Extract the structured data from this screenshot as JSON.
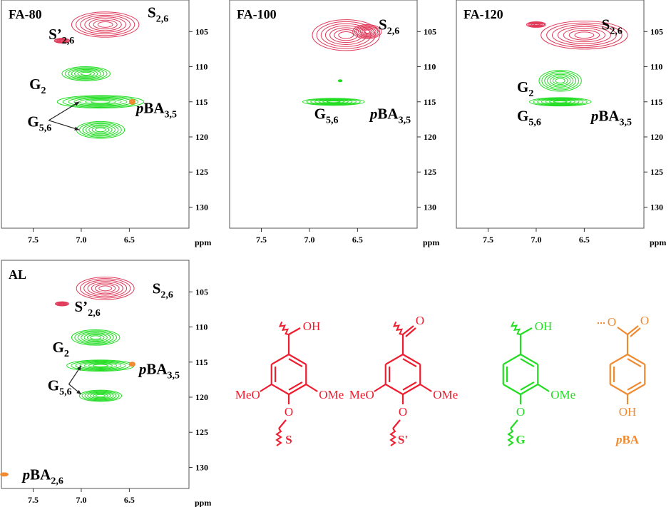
{
  "chart_data": [
    {
      "type": "contour",
      "title": "FA-80",
      "xlabel": "ppm",
      "xlim": [
        7.83,
        5.88
      ],
      "ylim": [
        100.5,
        133
      ],
      "xticks": [
        7.5,
        {
          "value": 7,
          "label": "7.0"
        },
        6.5
      ],
      "yticks": [
        105,
        110,
        115,
        120,
        125,
        130
      ],
      "series": [
        {
          "color": "#e03a5a",
          "x": [
            6.75,
            7.2
          ],
          "y": [
            104,
            106.3
          ],
          "xspread": [
            0.35,
            0.08
          ],
          "yspread": [
            1.8,
            0.35
          ]
        },
        {
          "color": "#22dd22",
          "x": [
            6.95,
            6.8,
            6.8
          ],
          "y": [
            111,
            115,
            119
          ],
          "xspread": [
            0.25,
            0.45,
            0.25
          ],
          "yspread": [
            1,
            0.9,
            1.2
          ]
        },
        {
          "color": "#f08a30",
          "x": [
            6.47
          ],
          "y": [
            115
          ],
          "xspread": [
            0.03
          ],
          "yspread": [
            0.35
          ]
        }
      ],
      "annotations": [
        {
          "text": "S",
          "sub": "2,6",
          "x": 6.31,
          "y": 102.3
        },
        {
          "text": "S’",
          "sub": "2,6",
          "x": 7.34,
          "y": 105.4
        },
        {
          "text": "G",
          "sub": "2",
          "x": 7.54,
          "y": 112.5
        },
        {
          "text": "G",
          "sub": "5,6",
          "x": 7.56,
          "y": 117.8,
          "arrow_to": [
            [
              7.02,
              115
            ],
            [
              7.02,
              119
            ]
          ]
        },
        {
          "pre": "p",
          "text": "BA",
          "sub": "3,5",
          "x": 6.43,
          "y": 115.9
        }
      ]
    },
    {
      "type": "contour",
      "title": "FA-100",
      "xlabel": "ppm",
      "xlim": [
        7.83,
        5.88
      ],
      "ylim": [
        100.5,
        133
      ],
      "xticks": [
        7.5,
        {
          "value": 7,
          "label": "7.0"
        },
        6.5
      ],
      "yticks": [
        105,
        110,
        115,
        120,
        125,
        130
      ],
      "series": [
        {
          "color": "#e03a5a",
          "x": [
            6.62,
            6.4
          ],
          "y": [
            105.5,
            105
          ],
          "xspread": [
            0.35,
            0.15
          ],
          "yspread": [
            2.2,
            1
          ]
        },
        {
          "color": "#22dd22",
          "x": [
            6.75,
            6.68
          ],
          "y": [
            115,
            112
          ],
          "xspread": [
            0.32,
            0.02
          ],
          "yspread": [
            0.5,
            0.15
          ]
        }
      ],
      "annotations": [
        {
          "text": "S",
          "sub": "2,6",
          "x": 6.28,
          "y": 104
        },
        {
          "text": "G",
          "sub": "5,6",
          "x": 6.95,
          "y": 116.7
        },
        {
          "pre": "p",
          "text": "BA",
          "sub": "3,5",
          "x": 6.37,
          "y": 116.7
        }
      ]
    },
    {
      "type": "contour",
      "title": "FA-120",
      "xlabel": "ppm",
      "xlim": [
        7.83,
        5.88
      ],
      "ylim": [
        100.5,
        133
      ],
      "xticks": [
        7.5,
        {
          "value": 7,
          "label": "7.0"
        },
        6.5
      ],
      "yticks": [
        105,
        110,
        115,
        120,
        125,
        130
      ],
      "series": [
        {
          "color": "#e03a5a",
          "x": [
            6.5,
            7.0
          ],
          "y": [
            105.5,
            104
          ],
          "xspread": [
            0.45,
            0.1
          ],
          "yspread": [
            2,
            0.4
          ]
        },
        {
          "color": "#22dd22",
          "x": [
            6.75,
            6.75
          ],
          "y": [
            112,
            115
          ],
          "xspread": [
            0.22,
            0.32
          ],
          "yspread": [
            1.5,
            0.6
          ]
        }
      ],
      "annotations": [
        {
          "text": "S",
          "sub": "2,6",
          "x": 6.32,
          "y": 104
        },
        {
          "text": "G",
          "sub": "2",
          "x": 7.2,
          "y": 112.9
        },
        {
          "text": "G",
          "sub": "5,6",
          "x": 7.2,
          "y": 117
        },
        {
          "pre": "p",
          "text": "BA",
          "sub": "3,5",
          "x": 6.43,
          "y": 117
        }
      ]
    },
    {
      "type": "contour",
      "title": "AL",
      "xlabel": "ppm",
      "xlim": [
        7.83,
        5.88
      ],
      "ylim": [
        100.5,
        133
      ],
      "xticks": [
        7.5,
        {
          "value": 7,
          "label": "7.0"
        },
        6.5
      ],
      "yticks": [
        105,
        110,
        115,
        120,
        125,
        130
      ],
      "series": [
        {
          "color": "#e03a5a",
          "x": [
            6.75,
            7.2
          ],
          "y": [
            104.5,
            106.7
          ],
          "xspread": [
            0.3,
            0.07
          ],
          "yspread": [
            1.6,
            0.3
          ]
        },
        {
          "color": "#22dd22",
          "x": [
            6.85,
            6.8,
            6.8
          ],
          "y": [
            111.5,
            115.5,
            119.8
          ],
          "xspread": [
            0.25,
            0.35,
            0.22
          ],
          "yspread": [
            1.1,
            0.8,
            0.8
          ]
        },
        {
          "color": "#f08a30",
          "x": [
            6.47,
            7.8
          ],
          "y": [
            115.3,
            131
          ],
          "xspread": [
            0.03,
            0.04
          ],
          "yspread": [
            0.3,
            0.25
          ]
        }
      ],
      "annotations": [
        {
          "text": "S",
          "sub": "2,6",
          "x": 6.26,
          "y": 104.5
        },
        {
          "text": "S’",
          "sub": "2,6",
          "x": 7.07,
          "y": 107.1
        },
        {
          "text": "G",
          "sub": "2",
          "x": 7.3,
          "y": 112.9
        },
        {
          "text": "G",
          "sub": "5,6",
          "x": 7.35,
          "y": 118.3,
          "arrow_to": [
            [
              7.0,
              115.5
            ],
            [
              7.0,
              119.6
            ]
          ]
        },
        {
          "pre": "p",
          "text": "BA",
          "sub": "3,5",
          "x": 6.4,
          "y": 116
        },
        {
          "pre": "p",
          "text": "BA",
          "sub": "2,6",
          "x": 7.61,
          "y": 131
        }
      ]
    }
  ],
  "structures": [
    {
      "label": "S",
      "color": "#ee1c2e",
      "top_right": "OH",
      "left": "MeO",
      "right": "OMe",
      "bottom": "O"
    },
    {
      "label": "S'",
      "color": "#ee1c2e",
      "top_right": "O",
      "left": "MeO",
      "right": "OMe",
      "bottom": "O"
    },
    {
      "label": "G",
      "color": "#22dd22",
      "top_right": "OH",
      "right": "OMe",
      "bottom": "O"
    },
    {
      "label_pre": "p",
      "label": "BA",
      "color": "#f08a30",
      "top_right": "O",
      "top_left": "O",
      "bottom": "OH"
    }
  ]
}
